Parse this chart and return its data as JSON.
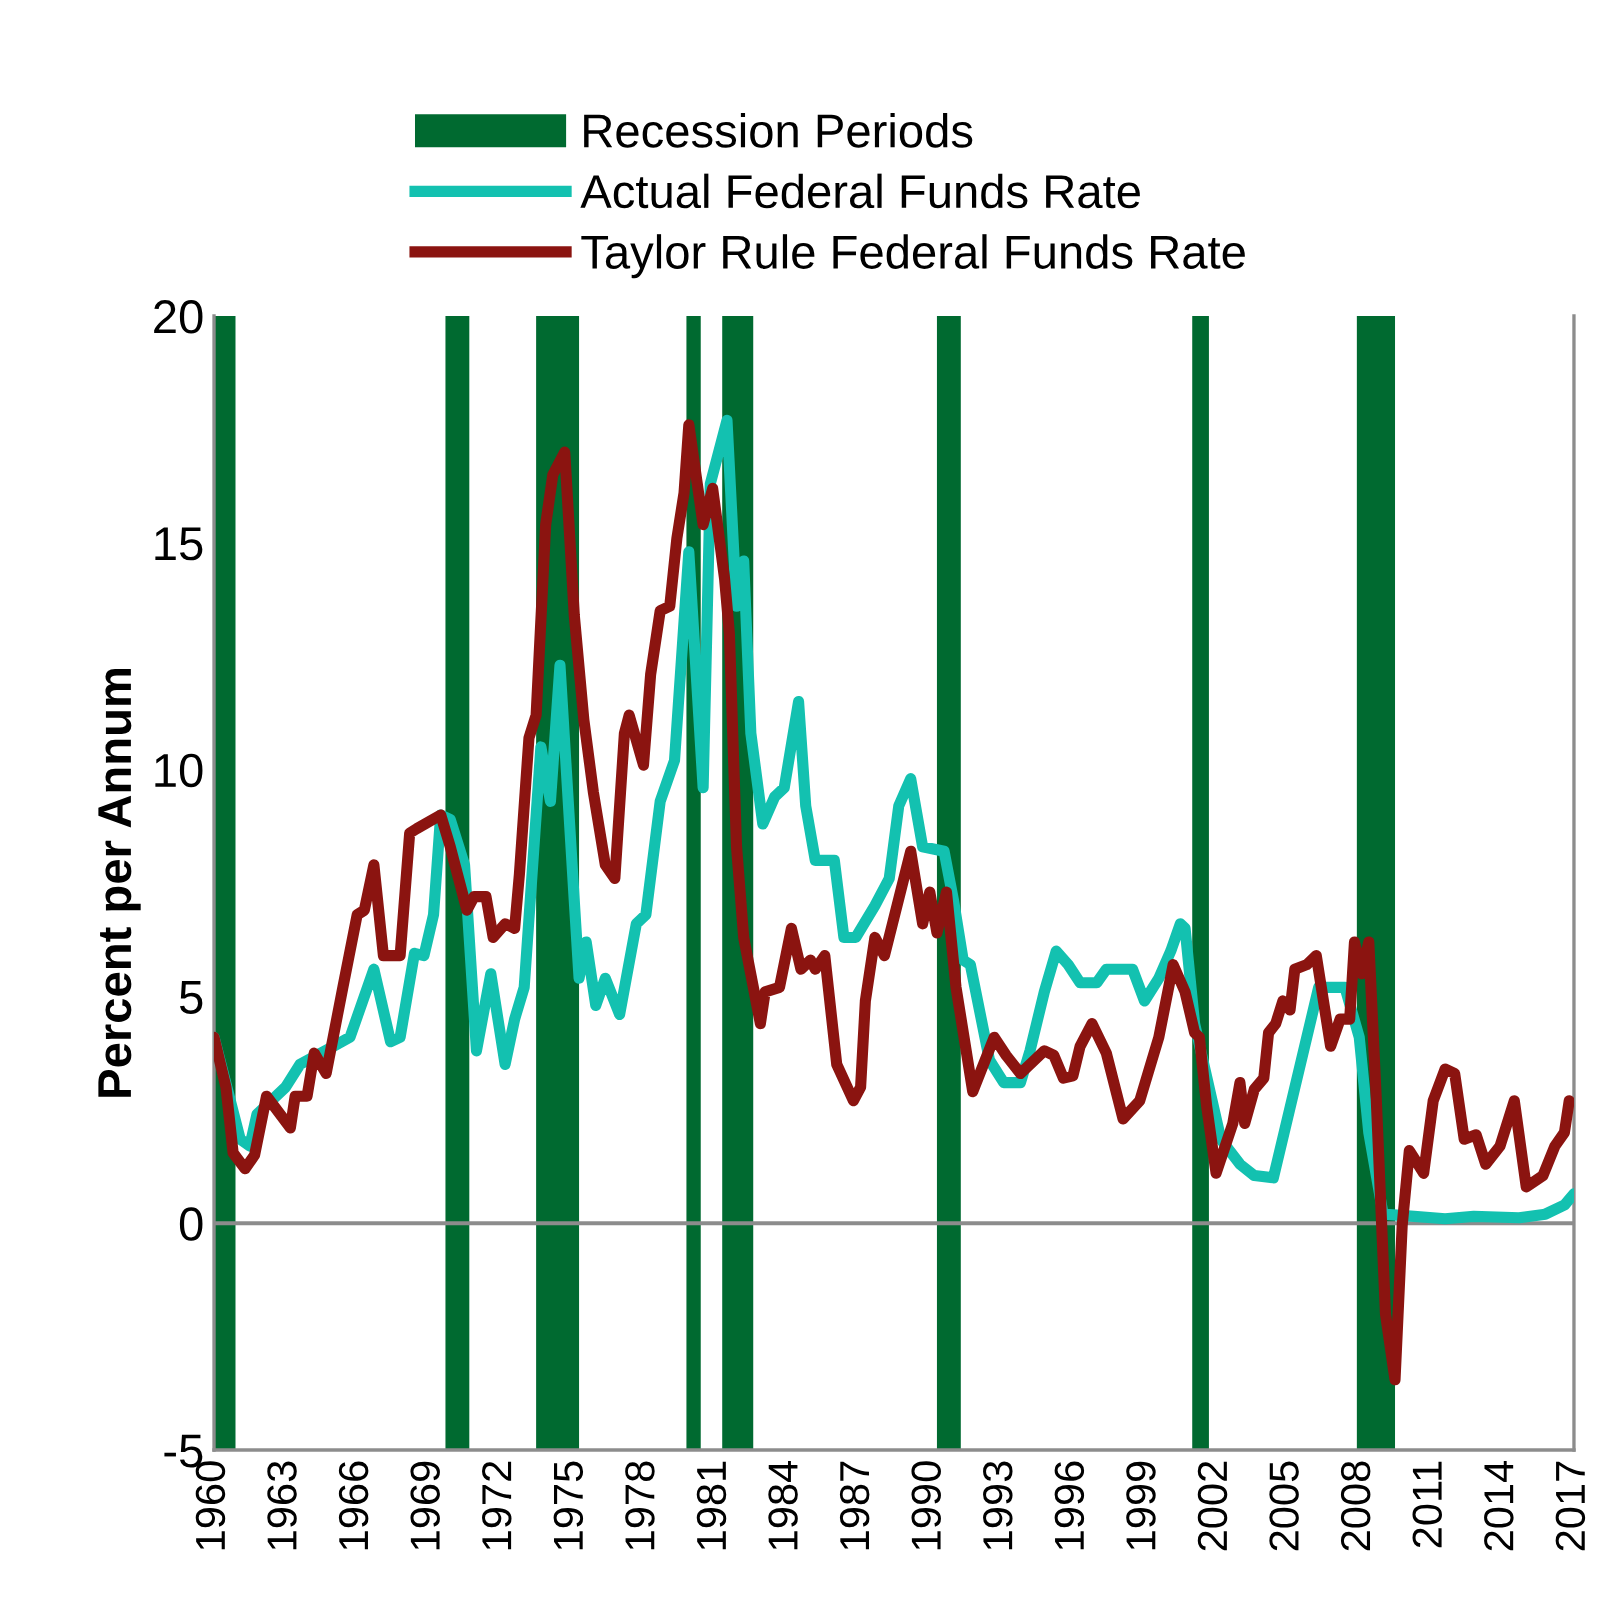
{
  "chart_data": {
    "type": "line",
    "ylabel": "Percent per Annum",
    "xlim": [
      1960,
      2017
    ],
    "xticks": [
      1960,
      1963,
      1966,
      1969,
      1972,
      1975,
      1978,
      1981,
      1984,
      1987,
      1990,
      1993,
      1996,
      1999,
      2002,
      2005,
      2008,
      2011,
      2014,
      2017
    ],
    "ylim": [
      -5,
      20
    ],
    "yticks": [
      -5,
      0,
      5,
      10,
      15,
      20
    ],
    "grid": false,
    "legend": "top",
    "line_style": "solid",
    "marker": "none",
    "series": [
      {
        "name": "Actual Federal Funds Rate",
        "color": "#13c1b0",
        "x": [
          1960.0,
          1961.1,
          1961.5,
          1961.8,
          1963.0,
          1963.6,
          1965.0,
          1965.7,
          1966.7,
          1967.4,
          1967.8,
          1968.4,
          1968.8,
          1969.2,
          1969.5,
          1969.9,
          1970.5,
          1971.0,
          1971.6,
          1972.2,
          1972.6,
          1973.0,
          1973.7,
          1974.1,
          1974.5,
          1975.1,
          1975.3,
          1975.6,
          1976.0,
          1976.4,
          1977.0,
          1977.7,
          1978.1,
          1978.7,
          1979.3,
          1979.9,
          1980.5,
          1980.8,
          1981.5,
          1981.9,
          1982.2,
          1982.5,
          1983.0,
          1983.5,
          1983.9,
          1984.5,
          1984.8,
          1985.2,
          1986.0,
          1986.4,
          1986.9,
          1987.7,
          1988.3,
          1988.7,
          1989.2,
          1989.7,
          1990.6,
          1991.0,
          1991.4,
          1991.7,
          1992.5,
          1993.1,
          1993.8,
          1994.2,
          1994.8,
          1995.3,
          1995.8,
          1996.3,
          1997.0,
          1997.4,
          1998.5,
          1999.0,
          1999.6,
          2000.1,
          2000.5,
          2000.7,
          2001.1,
          2002.2,
          2003.0,
          2003.6,
          2004.4,
          2006.3,
          2007.4,
          2008.0,
          2008.4,
          2009.0,
          2010.3,
          2011.6,
          2012.8,
          2014.7,
          2015.8,
          2016.6,
          2017.0
        ],
        "values": [
          4.1,
          1.85,
          1.7,
          2.4,
          3.0,
          3.5,
          3.9,
          4.1,
          5.6,
          4.0,
          4.1,
          5.95,
          5.9,
          6.8,
          9.0,
          8.9,
          7.9,
          3.8,
          5.5,
          3.5,
          4.5,
          5.2,
          10.5,
          9.3,
          12.3,
          7.1,
          5.4,
          6.2,
          4.8,
          5.4,
          4.6,
          6.6,
          6.8,
          9.3,
          10.2,
          14.8,
          9.6,
          16.3,
          17.7,
          13.6,
          14.6,
          10.8,
          8.8,
          9.4,
          9.6,
          11.5,
          9.2,
          8.0,
          8.0,
          6.3,
          6.3,
          7.0,
          7.6,
          9.2,
          9.8,
          8.3,
          8.2,
          7.1,
          5.8,
          5.7,
          3.6,
          3.1,
          3.1,
          3.8,
          5.1,
          6.0,
          5.7,
          5.3,
          5.3,
          5.6,
          5.6,
          4.9,
          5.4,
          6.0,
          6.6,
          6.5,
          4.4,
          1.85,
          1.3,
          1.05,
          1.0,
          5.2,
          5.2,
          4.1,
          2.0,
          0.2,
          0.15,
          0.1,
          0.15,
          0.12,
          0.2,
          0.4,
          0.65
        ]
      },
      {
        "name": "Taylor Rule Federal Funds Rate",
        "color": "#8b1410",
        "x": [
          1960.0,
          1960.5,
          1960.8,
          1961.3,
          1961.7,
          1962.2,
          1963.2,
          1963.4,
          1963.9,
          1964.2,
          1964.7,
          1965.4,
          1966.0,
          1966.3,
          1966.7,
          1967.1,
          1967.8,
          1968.2,
          1968.5,
          1969.5,
          1969.9,
          1970.6,
          1970.9,
          1971.4,
          1971.7,
          1972.2,
          1972.6,
          1972.8,
          1973.2,
          1973.5,
          1973.9,
          1974.2,
          1974.7,
          1975.1,
          1975.5,
          1975.9,
          1976.4,
          1976.8,
          1977.2,
          1977.4,
          1978.0,
          1978.3,
          1978.7,
          1979.1,
          1979.4,
          1979.7,
          1979.9,
          1980.5,
          1980.9,
          1981.4,
          1981.6,
          1981.9,
          1982.2,
          1982.9,
          1983.1,
          1983.7,
          1984.2,
          1984.6,
          1985.0,
          1985.2,
          1985.6,
          1986.1,
          1986.8,
          1987.1,
          1987.3,
          1987.7,
          1988.1,
          1989.2,
          1989.7,
          1990.0,
          1990.3,
          1990.7,
          1991.1,
          1991.8,
          1992.7,
          1993.2,
          1993.8,
          1994.8,
          1995.2,
          1995.6,
          1996.0,
          1996.3,
          1996.8,
          1997.4,
          1998.1,
          1998.8,
          1999.6,
          2000.2,
          2000.7,
          2001.1,
          2001.3,
          2001.6,
          2002.0,
          2002.7,
          2003.0,
          2003.2,
          2003.6,
          2004.0,
          2004.2,
          2004.5,
          2004.8,
          2005.1,
          2005.3,
          2005.8,
          2006.2,
          2006.8,
          2007.2,
          2007.6,
          2007.8,
          2008.1,
          2008.4,
          2008.7,
          2009.1,
          2009.5,
          2009.8,
          2010.1,
          2010.7,
          2011.1,
          2011.6,
          2012.0,
          2012.4,
          2012.9,
          2013.3,
          2013.9,
          2014.5,
          2015.0,
          2015.7,
          2016.2,
          2016.6,
          2016.8
        ],
        "values": [
          4.1,
          3.0,
          1.55,
          1.2,
          1.5,
          2.8,
          2.1,
          2.8,
          2.8,
          3.75,
          3.3,
          5.2,
          6.8,
          6.9,
          7.9,
          5.9,
          5.9,
          8.6,
          8.7,
          9.0,
          8.3,
          6.9,
          7.2,
          7.2,
          6.3,
          6.6,
          6.5,
          7.7,
          10.7,
          11.2,
          15.4,
          16.5,
          17.0,
          13.4,
          11.1,
          9.5,
          7.9,
          7.6,
          10.8,
          11.2,
          10.1,
          12.1,
          13.5,
          13.6,
          15.1,
          16.1,
          17.6,
          15.4,
          16.2,
          14.2,
          13.0,
          8.3,
          6.3,
          4.4,
          5.1,
          5.2,
          6.5,
          5.6,
          5.8,
          5.6,
          5.9,
          3.5,
          2.7,
          3.0,
          4.9,
          6.3,
          5.9,
          8.2,
          6.6,
          7.3,
          6.4,
          7.3,
          5.2,
          2.9,
          4.1,
          3.7,
          3.3,
          3.8,
          3.7,
          3.2,
          3.25,
          3.9,
          4.4,
          3.75,
          2.3,
          2.7,
          4.1,
          5.7,
          5.1,
          4.2,
          4.1,
          2.6,
          1.1,
          2.2,
          3.1,
          2.2,
          2.95,
          3.2,
          4.2,
          4.4,
          4.9,
          4.7,
          5.6,
          5.7,
          5.9,
          3.9,
          4.5,
          4.5,
          6.2,
          5.5,
          6.2,
          2.9,
          -2.0,
          -3.45,
          -0.05,
          1.6,
          1.1,
          2.7,
          3.4,
          3.3,
          1.85,
          1.95,
          1.3,
          1.7,
          2.7,
          0.8,
          1.05,
          1.7,
          2.0,
          2.7
        ]
      }
    ],
    "bands": [
      {
        "axis": "x",
        "from": 1960.0,
        "to": 1960.9,
        "label": "Recession Periods",
        "color": "#006a30"
      },
      {
        "axis": "x",
        "from": 1969.7,
        "to": 1970.7,
        "color": "#006a30"
      },
      {
        "axis": "x",
        "from": 1973.5,
        "to": 1975.3,
        "color": "#006a30"
      },
      {
        "axis": "x",
        "from": 1979.8,
        "to": 1980.4,
        "color": "#006a30"
      },
      {
        "axis": "x",
        "from": 1981.3,
        "to": 1982.6,
        "color": "#006a30"
      },
      {
        "axis": "x",
        "from": 1990.3,
        "to": 1991.3,
        "color": "#006a30"
      },
      {
        "axis": "x",
        "from": 2001.0,
        "to": 2001.7,
        "color": "#006a30"
      },
      {
        "axis": "x",
        "from": 2007.9,
        "to": 2009.5,
        "color": "#006a30"
      }
    ],
    "ref_lines": [
      {
        "axis": "y",
        "value": 0,
        "color": "#8c8c8c",
        "line_style": "solid"
      }
    ]
  }
}
